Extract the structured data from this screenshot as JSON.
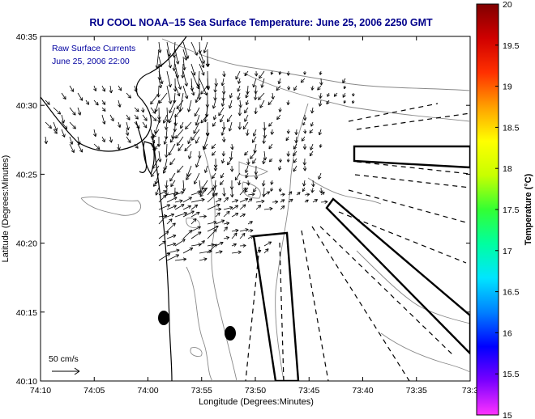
{
  "chart_data": {
    "type": "vector_field_map",
    "title": "RU COOL   NOAA–15  Sea Surface Temperature:  June 25, 2006 2250 GMT",
    "xlabel": "Longitude (Degrees:Minutes)",
    "ylabel": "Latitude (Degrees:Minutes)",
    "x_tick_labels": [
      "74:10",
      "74:05",
      "74:00",
      "73:55",
      "73:50",
      "73:45",
      "73:40",
      "73:35",
      "73:3"
    ],
    "y_tick_labels": [
      "40:35",
      "40:30",
      "40:25",
      "40:20",
      "40:15",
      "40:10"
    ],
    "overlay_lines": [
      "Raw Surface Currents",
      "June 25, 2006 22:00"
    ],
    "scale_label": "50 cm/s",
    "colorbar": {
      "label": "Temperature (°C)",
      "range": [
        15,
        20
      ],
      "tick_labels": [
        "20",
        "19.5",
        "19",
        "18.5",
        "18",
        "17.5",
        "17",
        "16.5",
        "16",
        "15.5",
        "15"
      ],
      "colors": [
        "#ff33ff",
        "#7a00ff",
        "#0000ff",
        "#0080ff",
        "#00e5ff",
        "#00ffa0",
        "#33ff33",
        "#c8ff00",
        "#ffff00",
        "#ffa000",
        "#ff3000",
        "#d00000",
        "#800000"
      ]
    },
    "stations": [
      {
        "lon_min_west": 3958.8,
        "lat_min": 2445.4
      },
      {
        "lon_min_west": 3952.2,
        "lat_min": 2433.6
      }
    ],
    "grid": false
  }
}
